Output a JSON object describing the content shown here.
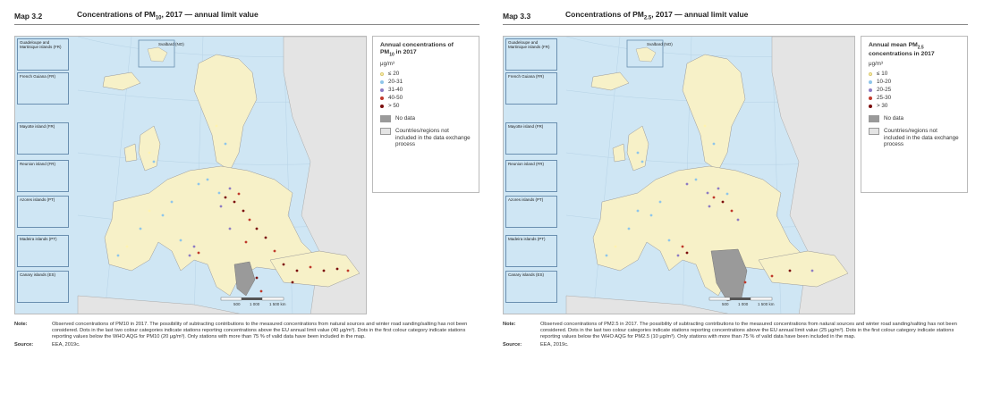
{
  "left": {
    "map_number": "Map 3.2",
    "title_prefix": "Concentrations of PM",
    "title_sub": "10",
    "title_suffix": ", 2017 — annual limit value",
    "insets": [
      "Guadeloupe and Martinique islands (FR)",
      "French Guiana (FR)",
      "Mayotte island (FR)",
      "Reunion island (FR)",
      "Azores islands (PT)",
      "Madeira islands (PT)",
      "Canary islands (ES)"
    ],
    "svalbard": "Svalbard (NO)",
    "scale_labels": [
      "500",
      "1 000",
      "1 500 km"
    ],
    "legend": {
      "title_line1": "Annual concentrations of",
      "title_prefix": "PM",
      "title_sub": "10",
      "title_suffix": " in 2017",
      "unit": "μg/m³",
      "items": [
        {
          "label": "≤ 20",
          "color": "#fff3b0"
        },
        {
          "label": "20-31",
          "color": "#8fc6ea"
        },
        {
          "label": "31-40",
          "color": "#8e7cc3"
        },
        {
          "label": "40-50",
          "color": "#c0392b"
        },
        {
          "label": "> 50",
          "color": "#7b0d0d"
        }
      ],
      "no_data": "No data",
      "not_included": "Countries/regions not included in the data exchange process"
    },
    "note_label": "Note:",
    "note_text": "Observed concentrations of PM10 in 2017. The possibility of subtracting contributions to the measured concentrations from natural sources and winter road sanding/salting has not been considered. Dots in the last two colour categories indicate stations reporting concentrations above the EU annual limit value (40 μg/m³). Dots in the first colour category indicate stations reporting values below the WHO AQG for PM10 (20 μg/m³). Only stations with more than 75 % of valid data have been included in the map.",
    "source_label": "Source:",
    "source_text": "EEA, 2019c."
  },
  "right": {
    "map_number": "Map 3.3",
    "title_prefix": "Concentrations of PM",
    "title_sub": "2.5",
    "title_suffix": ", 2017 — annual limit value",
    "insets": [
      "Guadeloupe and Martinique islands (FR)",
      "French Guiana (FR)",
      "Mayotte island (FR)",
      "Reunion island (FR)",
      "Azores islands (PT)",
      "Madeira islands (PT)",
      "Canary islands (ES)"
    ],
    "svalbard": "Svalbard (NO)",
    "scale_labels": [
      "500",
      "1 000",
      "1 500 km"
    ],
    "legend": {
      "title_line1": "Annual mean PM",
      "title_line1_sub": "2.5",
      "title_line2": "concentrations in 2017",
      "unit": "μg/m³",
      "items": [
        {
          "label": "≤ 10",
          "color": "#fff3b0"
        },
        {
          "label": "10-20",
          "color": "#8fc6ea"
        },
        {
          "label": "20-25",
          "color": "#8e7cc3"
        },
        {
          "label": "25-30",
          "color": "#c0392b"
        },
        {
          "label": "> 30",
          "color": "#7b0d0d"
        }
      ],
      "no_data": "No data",
      "not_included": "Countries/regions not included in the data exchange process"
    },
    "note_label": "Note:",
    "note_text": "Observed concentrations of PM2.5 in 2017. The possibility of subtracting contributions to the measured concentrations from natural sources and winter road sanding/salting has not been considered. Dots in the last two colour categories indicate stations reporting concentrations above the EU annual limit value (25 μg/m³). Dots in the first colour category indicate stations reporting values below the WHO AQG for PM2.5 (10 μg/m³). Only stations with more than 75 % of valid data have been included in the map.",
    "source_label": "Source:",
    "source_text": "EEA, 2019c."
  },
  "colors": {
    "sea": "#cfe6f4",
    "land_included": "#f7f1c8",
    "land_other": "#e4e4e4",
    "no_data": "#9a9a9a"
  }
}
